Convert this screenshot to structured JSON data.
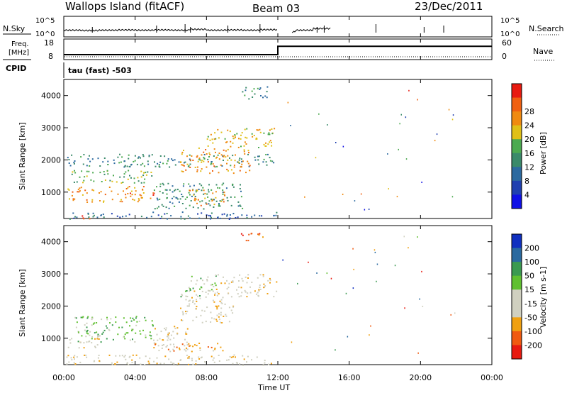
{
  "header": {
    "station": "Wallops Island (fitACF)",
    "beam": "Beam 03",
    "date": "23/Dec/2011"
  },
  "nsky_panel": {
    "label": "N.Sky",
    "left_ticks": [
      "10^5",
      "10^0"
    ],
    "right_ticks": [
      "10^5",
      "10^0"
    ],
    "right_label": "N.Search"
  },
  "freq_panel": {
    "label_line1": "Freq.",
    "label_line2": "[MHz]",
    "left_ticks": [
      "18",
      "8"
    ],
    "right_ticks": [
      "60",
      "0"
    ],
    "right_label": "Nave"
  },
  "cpid": {
    "label": "CPID",
    "mode": "tau (fast) -503"
  },
  "x_axis": {
    "label": "Time UT",
    "ticks": [
      "00:00",
      "04:00",
      "08:00",
      "12:00",
      "16:00",
      "20:00",
      "00:00"
    ]
  },
  "power_panel": {
    "ylabel": "Slant Range [km]",
    "yticks": [
      "1000",
      "2000",
      "3000",
      "4000"
    ],
    "colorbar_label": "Power [dB]",
    "colorbar_ticks": [
      "4",
      "8",
      "12",
      "16",
      "20",
      "24",
      "28"
    ]
  },
  "velocity_panel": {
    "ylabel": "Slant Range [km]",
    "yticks": [
      "1000",
      "2000",
      "3000",
      "4000"
    ],
    "colorbar_label": "Velocity [m s-1]",
    "colorbar_ticks": [
      "200",
      "100",
      "50",
      "15",
      "-15",
      "-50",
      "-100",
      "-200"
    ]
  },
  "colors": {
    "power_scale": [
      "#1010e6",
      "#2040b0",
      "#2c6aa0",
      "#3a8a6a",
      "#4caa50",
      "#e0c018",
      "#f08a10",
      "#f06010",
      "#e81a10"
    ],
    "velocity_scale": [
      "#e81a10",
      "#f05a10",
      "#f0a010",
      "#d0d0c0",
      "#d0d0c0",
      "#60c030",
      "#3a9a50",
      "#2a6aa0",
      "#1030c0"
    ],
    "gray_scatter": "#c8c8c0"
  },
  "chart_data": [
    {
      "type": "line",
      "name": "nsky",
      "x": [
        0,
        1,
        2,
        3,
        4,
        5,
        6,
        7,
        8,
        9,
        10,
        11,
        12,
        13,
        14,
        15
      ],
      "values": [
        0.6,
        0.5,
        0.6,
        0.7,
        0.6,
        0.7,
        0.6,
        0.9,
        0.6,
        0.7,
        0.6,
        0.8,
        0.0,
        0.6,
        1.2,
        0.2
      ],
      "xlim": [
        0,
        24
      ],
      "ylim": [
        0,
        5
      ]
    },
    {
      "type": "line",
      "name": "frequency",
      "x": [
        0,
        12,
        12,
        24
      ],
      "values": [
        10.4,
        10.4,
        14.5,
        14.5
      ],
      "xlim": [
        0,
        24
      ],
      "ylim": [
        8,
        18
      ]
    },
    {
      "type": "heatmap",
      "name": "power",
      "xlabel": "Time UT",
      "ylabel": "Slant Range [km]",
      "xlim": [
        0,
        24
      ],
      "ylim": [
        180,
        4500
      ],
      "regions": [
        {
          "t0": 0.1,
          "t1": 11.9,
          "r0": 1800,
          "r1": 2200,
          "level": 3
        },
        {
          "t0": 0.2,
          "t1": 5.0,
          "r0": 1300,
          "r1": 1700,
          "level": 4
        },
        {
          "t0": 0.2,
          "t1": 4.5,
          "r0": 700,
          "r1": 1200,
          "level": 6
        },
        {
          "t0": 1.0,
          "t1": 1.8,
          "r0": 180,
          "r1": 300,
          "level": 8
        },
        {
          "t0": 3.6,
          "t1": 5.2,
          "r0": 800,
          "r1": 1000,
          "level": 7
        },
        {
          "t0": 5.0,
          "t1": 10.0,
          "r0": 500,
          "r1": 1300,
          "level": 3
        },
        {
          "t0": 7.0,
          "t1": 9.0,
          "r0": 600,
          "r1": 1100,
          "level": 6
        },
        {
          "t0": 8.0,
          "t1": 11.8,
          "r0": 2400,
          "r1": 3000,
          "level": 5
        },
        {
          "t0": 6.5,
          "t1": 10.5,
          "r0": 1600,
          "r1": 2400,
          "level": 6
        },
        {
          "t0": 0.1,
          "t1": 11.9,
          "r0": 180,
          "r1": 400,
          "level": 2
        },
        {
          "t0": 9.6,
          "t1": 11.4,
          "r0": 3900,
          "r1": 4300,
          "level": 3
        }
      ]
    },
    {
      "type": "heatmap",
      "name": "velocity",
      "xlabel": "Time UT",
      "ylabel": "Slant Range [km]",
      "xlim": [
        0,
        24
      ],
      "ylim": [
        180,
        4500
      ],
      "regions": [
        {
          "t0": 0.6,
          "t1": 5.0,
          "r0": 900,
          "r1": 1700,
          "level": 5
        },
        {
          "t0": 0.2,
          "t1": 2.0,
          "r0": 700,
          "r1": 1100,
          "level": 3
        },
        {
          "t0": 5.0,
          "t1": 7.0,
          "r0": 600,
          "r1": 1400,
          "level": 3
        },
        {
          "t0": 5.0,
          "t1": 9.0,
          "r0": 600,
          "r1": 900,
          "level": 2
        },
        {
          "t0": 6.5,
          "t1": 9.5,
          "r0": 1500,
          "r1": 2500,
          "level": 3
        },
        {
          "t0": 6.5,
          "t1": 8.5,
          "r0": 2300,
          "r1": 3000,
          "level": 5
        },
        {
          "t0": 8.5,
          "t1": 11.9,
          "r0": 2300,
          "r1": 3000,
          "level": 3
        },
        {
          "t0": 9.8,
          "t1": 11.2,
          "r0": 4050,
          "r1": 4300,
          "level": 1
        },
        {
          "t0": 0.1,
          "t1": 11.9,
          "r0": 180,
          "r1": 500,
          "level": 3
        }
      ]
    }
  ]
}
